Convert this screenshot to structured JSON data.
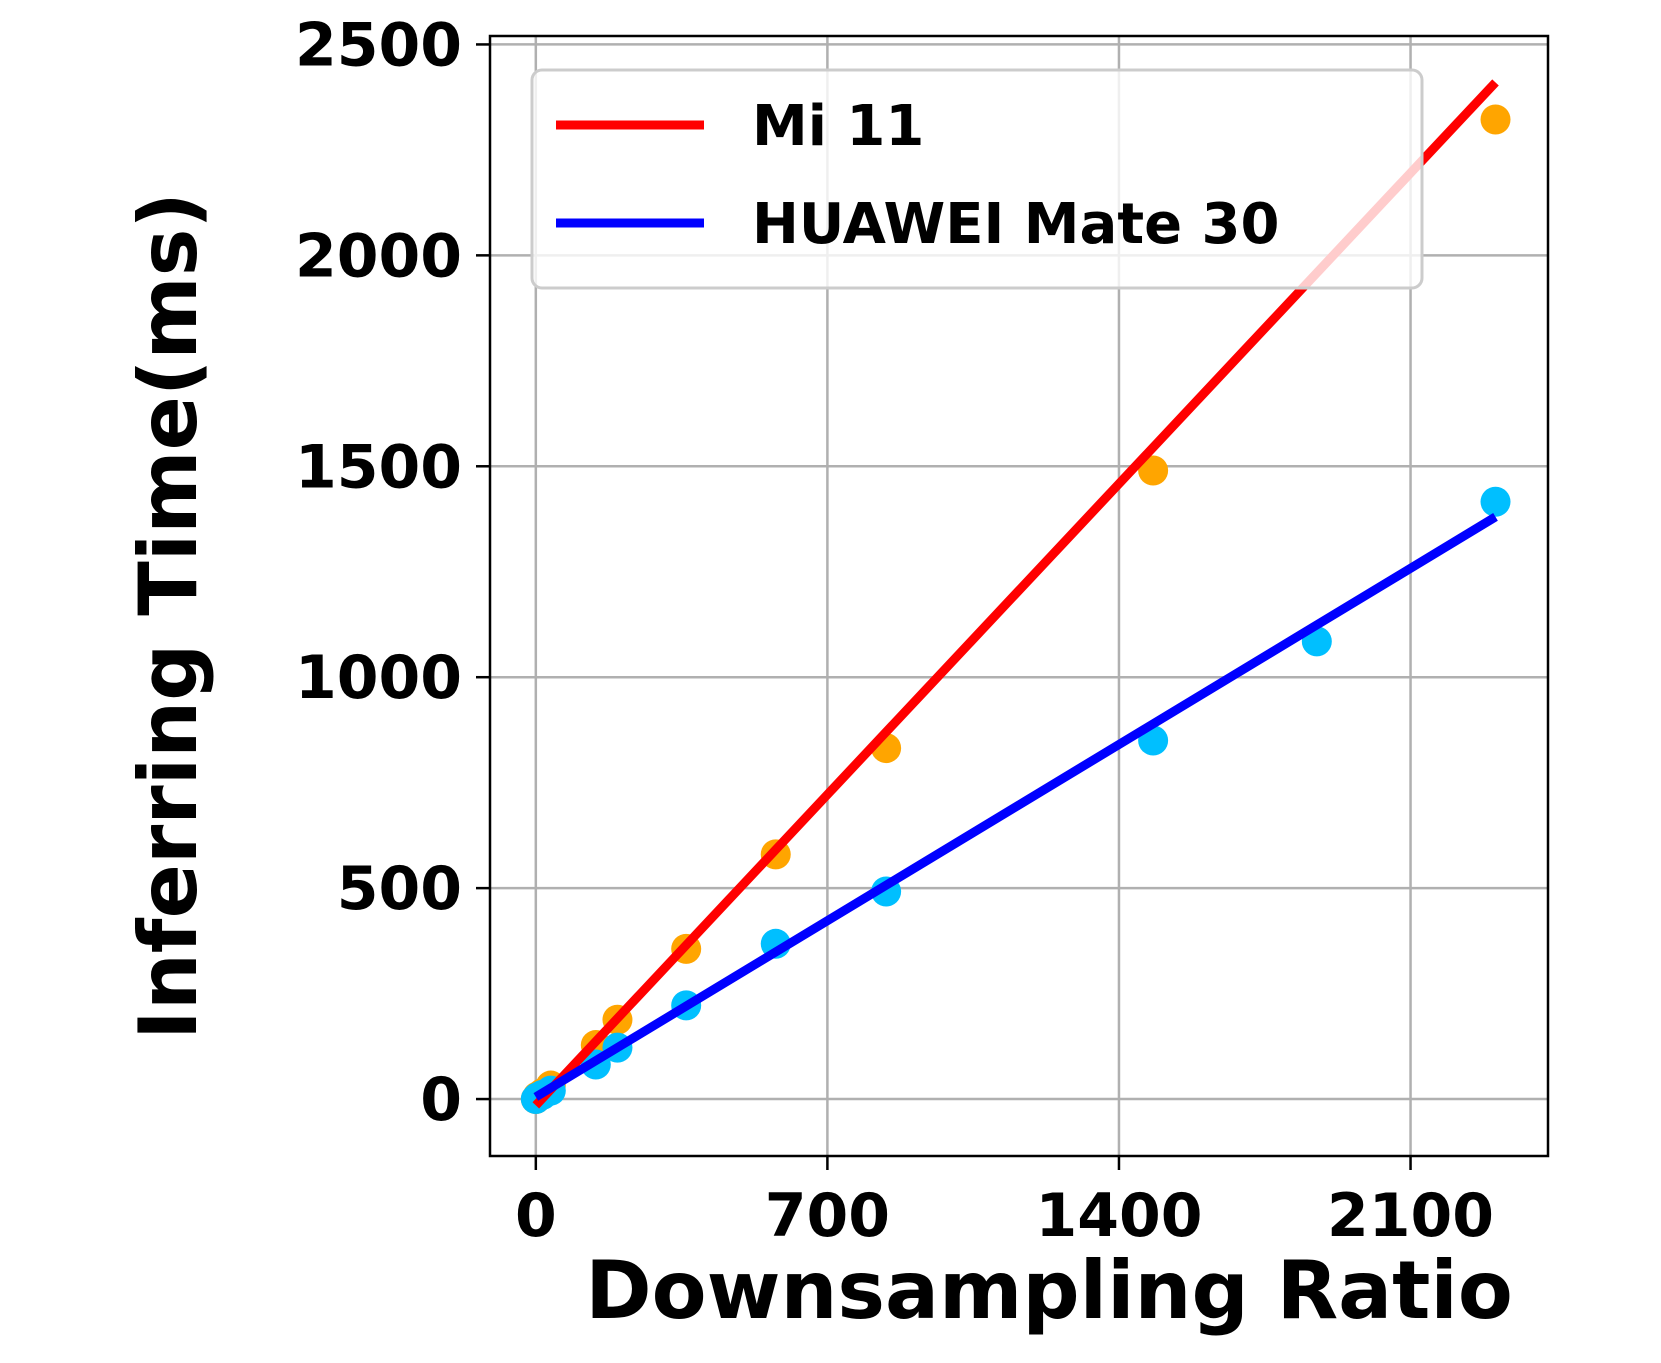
{
  "chart_data": {
    "type": "scatter",
    "title": "",
    "xlabel": "Downsampling Ratio",
    "ylabel": "Inferring Time(ms)",
    "xlim": [
      -110,
      2430
    ],
    "ylim": [
      -135,
      2520
    ],
    "xticks": [
      0,
      700,
      1400,
      2100
    ],
    "yticks": [
      0,
      500,
      1000,
      1500,
      2000,
      2500
    ],
    "grid": true,
    "legend_position": "top-left",
    "series": [
      {
        "name": "Mi 11",
        "kind": "scatter",
        "color": "#ffa500",
        "x": [
          0,
          4,
          16,
          36,
          144,
          196,
          361,
          576,
          841,
          1482,
          2304
        ],
        "y": [
          0,
          6,
          14,
          32,
          128,
          188,
          356,
          580,
          832,
          1490,
          2322
        ]
      },
      {
        "name": "HUAWEI Mate 30",
        "kind": "scatter",
        "color": "#00bfff",
        "x": [
          0,
          4,
          16,
          36,
          144,
          196,
          361,
          576,
          841,
          1482,
          1875,
          2304
        ],
        "y": [
          0,
          4,
          10,
          20,
          82,
          122,
          222,
          368,
          492,
          850,
          1085,
          1416
        ]
      },
      {
        "name": "Mi 11",
        "kind": "line",
        "color": "#ff0000",
        "x": [
          0,
          2304
        ],
        "y": [
          -15,
          2410
        ]
      },
      {
        "name": "HUAWEI Mate 30",
        "kind": "line",
        "color": "#0000ff",
        "x": [
          0,
          2304
        ],
        "y": [
          5,
          1380
        ]
      }
    ],
    "legend": [
      {
        "label": "Mi 11",
        "color": "#ff0000"
      },
      {
        "label": "HUAWEI Mate 30",
        "color": "#0000ff"
      }
    ]
  }
}
